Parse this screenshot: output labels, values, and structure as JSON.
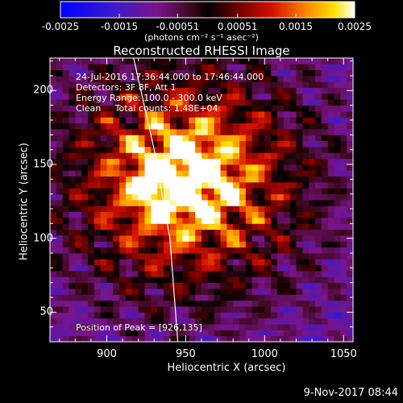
{
  "title": "Reconstructed RHESSI Image",
  "annotations": [
    "24-Jul-2016 17:36:44.000 to 17:46:44.000",
    "Detectors: 3F 8F, Att 1",
    "Energy Range: 100.0 - 300.0 keV",
    "Clean     Total counts: 1.48E+04"
  ],
  "peak_label": "Position of Peak = [926,135]",
  "footer_date": "9-Nov-2017 08:44",
  "colorbar": {
    "ticks": [
      "-0.0025",
      "-0.0015",
      "-0.00051",
      "0.00051",
      "0.0015",
      "0.0025"
    ],
    "tick_values": [
      -0.0025,
      -0.0015,
      -0.00051,
      0.00051,
      0.0015,
      0.0025
    ],
    "unit": "(photons cm⁻² s⁻¹ asec⁻²)",
    "range": [
      -0.0025,
      0.0025
    ]
  },
  "chart_data": {
    "type": "heatmap",
    "title": "Reconstructed RHESSI Image",
    "xlabel": "Heliocentric X (arcsec)",
    "ylabel": "Heliocentric Y (arcsec)",
    "xlim": [
      864,
      1056
    ],
    "ylim": [
      30,
      222
    ],
    "x_ticks": [
      900,
      950,
      1000,
      1050
    ],
    "y_ticks": [
      50,
      100,
      150,
      200
    ],
    "peak": [
      926,
      135
    ],
    "colormap": "blue-purple-black-red-yellow-white",
    "limb_curve": [
      [
        917,
        222
      ],
      [
        930,
        160
      ],
      [
        940,
        100
      ],
      [
        945,
        30
      ]
    ]
  }
}
